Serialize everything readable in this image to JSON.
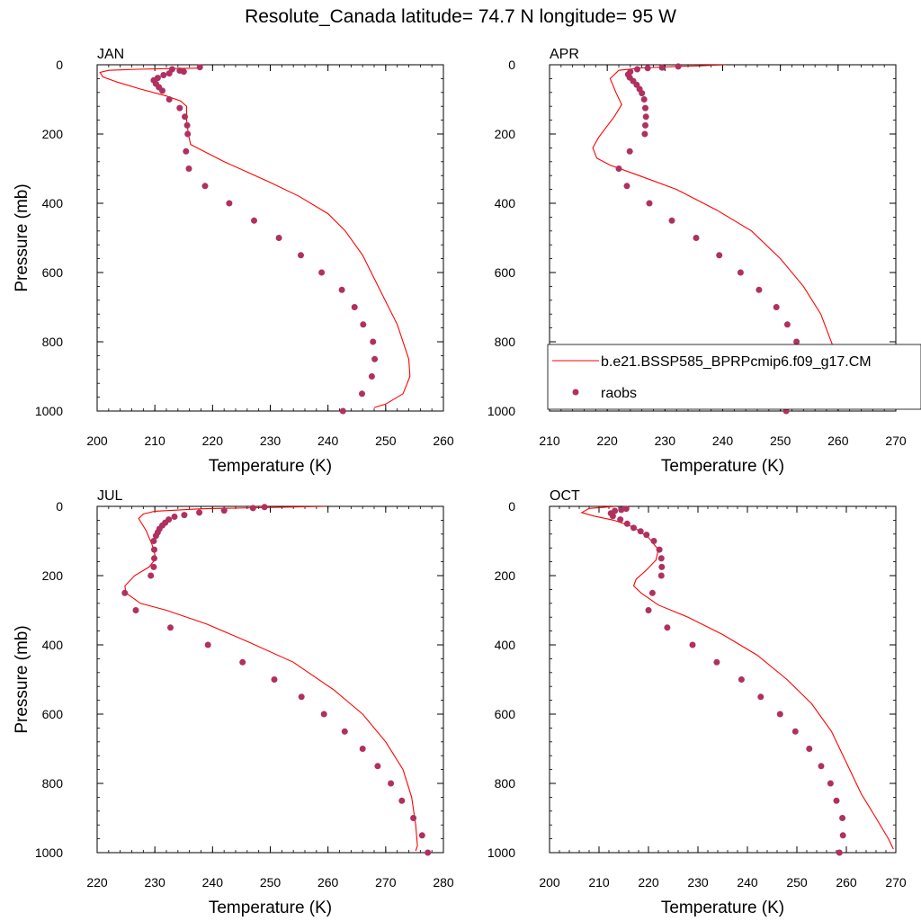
{
  "title": "Resolute_Canada  latitude= 74.7 N longitude= 95 W",
  "legend": {
    "model_label": "b.e21.BSSP585_BPRPcmip6.f09_g17.CM",
    "obs_label": "raobs"
  },
  "colors": {
    "model": "#ff0000",
    "obs": "#b03060"
  },
  "chart_data": [
    {
      "type": "line",
      "panel": "JAN",
      "xlabel": "Temperature (K)",
      "ylabel": "Pressure (mb)",
      "xlim": [
        200,
        260
      ],
      "xticks": [
        200,
        210,
        220,
        230,
        240,
        250,
        260
      ],
      "ylim": [
        1000,
        0
      ],
      "yticks": [
        0,
        200,
        400,
        600,
        800,
        1000
      ],
      "model": [
        [
          217.5,
          10
        ],
        [
          213,
          11
        ],
        [
          207,
          13
        ],
        [
          202,
          16
        ],
        [
          200.5,
          22
        ],
        [
          201,
          35
        ],
        [
          203.5,
          50
        ],
        [
          207.5,
          70
        ],
        [
          212,
          90
        ],
        [
          214.5,
          105
        ],
        [
          215.5,
          120
        ],
        [
          215.5,
          160
        ],
        [
          215.8,
          200
        ],
        [
          216.2,
          230
        ],
        [
          218.5,
          250
        ],
        [
          222,
          280
        ],
        [
          226,
          310
        ],
        [
          230,
          340
        ],
        [
          235,
          380
        ],
        [
          240,
          430
        ],
        [
          243,
          480
        ],
        [
          246,
          550
        ],
        [
          249,
          650
        ],
        [
          252,
          750
        ],
        [
          254,
          850
        ],
        [
          254.2,
          900
        ],
        [
          253,
          950
        ],
        [
          250,
          980
        ],
        [
          248,
          990
        ]
      ],
      "obs": [
        [
          217.8,
          7
        ],
        [
          215,
          20
        ],
        [
          213,
          13
        ],
        [
          214.3,
          17
        ],
        [
          212.5,
          25
        ],
        [
          211.5,
          30
        ],
        [
          210.5,
          38
        ],
        [
          209.8,
          45
        ],
        [
          210.2,
          55
        ],
        [
          210.7,
          65
        ],
        [
          211.3,
          75
        ],
        [
          212.5,
          100
        ],
        [
          214.3,
          125
        ],
        [
          215.2,
          150
        ],
        [
          215.6,
          175
        ],
        [
          215.7,
          200
        ],
        [
          215.4,
          250
        ],
        [
          215.9,
          300
        ],
        [
          218.7,
          350
        ],
        [
          222.9,
          400
        ],
        [
          227.2,
          450
        ],
        [
          231.5,
          500
        ],
        [
          235.3,
          550
        ],
        [
          238.9,
          600
        ],
        [
          242.4,
          650
        ],
        [
          244.6,
          700
        ],
        [
          246.1,
          750
        ],
        [
          247.8,
          800
        ],
        [
          248.1,
          850
        ],
        [
          247.6,
          900
        ],
        [
          245.9,
          950
        ],
        [
          242.6,
          1000
        ]
      ]
    },
    {
      "type": "line",
      "panel": "APR",
      "xlabel": "Temperature (K)",
      "ylabel": "",
      "xlim": [
        210,
        270
      ],
      "xticks": [
        210,
        220,
        230,
        240,
        250,
        260,
        270
      ],
      "ylim": [
        1000,
        0
      ],
      "yticks": [
        0,
        200,
        400,
        600,
        800,
        1000
      ],
      "model": [
        [
          240.5,
          0
        ],
        [
          236,
          3
        ],
        [
          232,
          5
        ],
        [
          226,
          9
        ],
        [
          222,
          16
        ],
        [
          220.5,
          40
        ],
        [
          221.5,
          80
        ],
        [
          222.5,
          115
        ],
        [
          221.2,
          150
        ],
        [
          218.5,
          210
        ],
        [
          217.5,
          240
        ],
        [
          218.2,
          270
        ],
        [
          220.5,
          290
        ],
        [
          225.5,
          320
        ],
        [
          232,
          360
        ],
        [
          239,
          420
        ],
        [
          245,
          480
        ],
        [
          250,
          560
        ],
        [
          254,
          640
        ],
        [
          257,
          720
        ],
        [
          259.5,
          830
        ],
        [
          260,
          900
        ],
        [
          259,
          940
        ],
        [
          257,
          975
        ],
        [
          256.5,
          990
        ]
      ],
      "obs": [
        [
          232.3,
          5
        ],
        [
          229.5,
          8
        ],
        [
          227,
          10
        ],
        [
          225.2,
          13
        ],
        [
          224,
          20
        ],
        [
          223.6,
          28
        ],
        [
          223.9,
          37
        ],
        [
          224.5,
          47
        ],
        [
          225.1,
          58
        ],
        [
          225.6,
          70
        ],
        [
          226,
          82
        ],
        [
          226.4,
          100
        ],
        [
          226.6,
          125
        ],
        [
          226.7,
          150
        ],
        [
          226.6,
          175
        ],
        [
          226.5,
          200
        ],
        [
          223.9,
          250
        ],
        [
          222,
          300
        ],
        [
          223.4,
          350
        ],
        [
          227.3,
          400
        ],
        [
          231.2,
          450
        ],
        [
          235.4,
          500
        ],
        [
          239.4,
          550
        ],
        [
          243.1,
          600
        ],
        [
          246.3,
          650
        ],
        [
          249.3,
          700
        ],
        [
          251.2,
          750
        ],
        [
          252.8,
          800
        ],
        [
          254.2,
          850
        ],
        [
          254.3,
          900
        ],
        [
          253,
          950
        ],
        [
          251,
          1000
        ]
      ]
    },
    {
      "type": "line",
      "panel": "JUL",
      "xlabel": "Temperature (K)",
      "ylabel": "Pressure (mb)",
      "xlim": [
        220,
        280
      ],
      "xticks": [
        220,
        230,
        240,
        250,
        260,
        270,
        280
      ],
      "ylim": [
        1000,
        0
      ],
      "yticks": [
        0,
        200,
        400,
        600,
        800,
        1000
      ],
      "model": [
        [
          259.7,
          0
        ],
        [
          248,
          4
        ],
        [
          238,
          7
        ],
        [
          230,
          14
        ],
        [
          228,
          22
        ],
        [
          227.2,
          35
        ],
        [
          228.5,
          70
        ],
        [
          229.5,
          110
        ],
        [
          230.2,
          150
        ],
        [
          229,
          175
        ],
        [
          226.5,
          200
        ],
        [
          224.8,
          230
        ],
        [
          225,
          250
        ],
        [
          227.5,
          280
        ],
        [
          232,
          300
        ],
        [
          239,
          340
        ],
        [
          246,
          390
        ],
        [
          254,
          450
        ],
        [
          261,
          530
        ],
        [
          266,
          600
        ],
        [
          270,
          680
        ],
        [
          273,
          760
        ],
        [
          274.5,
          840
        ],
        [
          275.2,
          920
        ],
        [
          275.5,
          980
        ],
        [
          275.2,
          995
        ]
      ],
      "obs": [
        [
          249,
          2
        ],
        [
          247,
          5
        ],
        [
          242,
          12
        ],
        [
          237.7,
          18
        ],
        [
          235.1,
          25
        ],
        [
          233.4,
          30
        ],
        [
          232.4,
          38
        ],
        [
          231.8,
          47
        ],
        [
          231.3,
          55
        ],
        [
          230.8,
          65
        ],
        [
          230.5,
          75
        ],
        [
          230.2,
          85
        ],
        [
          229.8,
          100
        ],
        [
          229.9,
          125
        ],
        [
          229.9,
          150
        ],
        [
          229.8,
          175
        ],
        [
          229.3,
          200
        ],
        [
          224.8,
          250
        ],
        [
          226.7,
          300
        ],
        [
          232.7,
          350
        ],
        [
          239.2,
          400
        ],
        [
          245.2,
          450
        ],
        [
          250.7,
          500
        ],
        [
          255.4,
          550
        ],
        [
          259.3,
          600
        ],
        [
          262.9,
          650
        ],
        [
          266,
          700
        ],
        [
          268.6,
          750
        ],
        [
          270.9,
          800
        ],
        [
          272.8,
          850
        ],
        [
          274.8,
          900
        ],
        [
          276.3,
          950
        ],
        [
          277.3,
          1000
        ]
      ]
    },
    {
      "type": "line",
      "panel": "OCT",
      "xlabel": "Temperature (K)",
      "ylabel": "",
      "xlim": [
        200,
        270
      ],
      "xticks": [
        200,
        210,
        220,
        230,
        240,
        250,
        260,
        270
      ],
      "ylim": [
        1000,
        0
      ],
      "yticks": [
        0,
        200,
        400,
        600,
        800,
        1000
      ],
      "model": [
        [
          213.5,
          0
        ],
        [
          208,
          6
        ],
        [
          206.5,
          18
        ],
        [
          209,
          28
        ],
        [
          213,
          40
        ],
        [
          217,
          60
        ],
        [
          220,
          90
        ],
        [
          222,
          125
        ],
        [
          221.5,
          155
        ],
        [
          219.5,
          185
        ],
        [
          217.5,
          210
        ],
        [
          217,
          230
        ],
        [
          218.5,
          250
        ],
        [
          222,
          285
        ],
        [
          228,
          320
        ],
        [
          235,
          370
        ],
        [
          242,
          430
        ],
        [
          248,
          500
        ],
        [
          253,
          570
        ],
        [
          257,
          650
        ],
        [
          260,
          740
        ],
        [
          263,
          830
        ],
        [
          266,
          900
        ],
        [
          268.5,
          960
        ],
        [
          269.5,
          990
        ]
      ],
      "obs": [
        [
          215.5,
          7
        ],
        [
          214.5,
          10
        ],
        [
          213.2,
          13
        ],
        [
          212.4,
          20
        ],
        [
          212.8,
          28
        ],
        [
          214.3,
          38
        ],
        [
          215.7,
          50
        ],
        [
          217,
          62
        ],
        [
          218.4,
          72
        ],
        [
          219.6,
          82
        ],
        [
          221.1,
          100
        ],
        [
          222.2,
          125
        ],
        [
          222.6,
          150
        ],
        [
          222.7,
          175
        ],
        [
          222.6,
          200
        ],
        [
          220.8,
          250
        ],
        [
          220,
          300
        ],
        [
          223.8,
          350
        ],
        [
          228.9,
          400
        ],
        [
          233.8,
          450
        ],
        [
          238.8,
          500
        ],
        [
          242.7,
          550
        ],
        [
          246.6,
          600
        ],
        [
          249.7,
          650
        ],
        [
          252.5,
          700
        ],
        [
          254.9,
          750
        ],
        [
          256.8,
          800
        ],
        [
          258,
          850
        ],
        [
          259.2,
          900
        ],
        [
          259.3,
          950
        ],
        [
          258.6,
          1000
        ]
      ]
    }
  ]
}
